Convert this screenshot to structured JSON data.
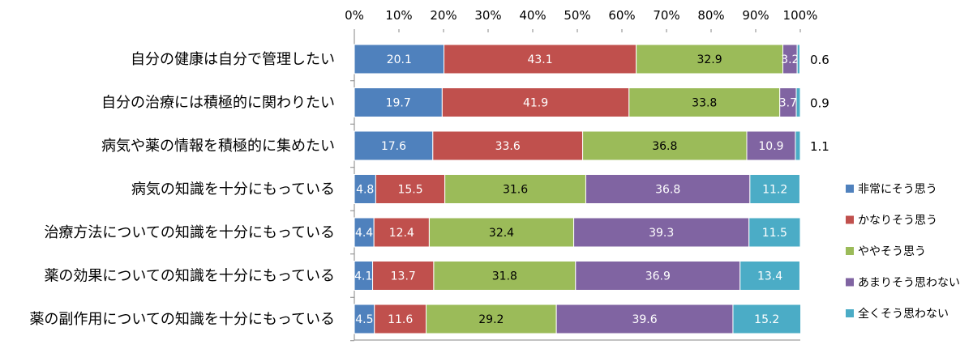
{
  "chart_data": {
    "type": "bar",
    "orientation": "horizontal",
    "stacked": "percent",
    "xlim": [
      0,
      100
    ],
    "x_ticks": [
      "0%",
      "10%",
      "20%",
      "30%",
      "40%",
      "50%",
      "60%",
      "70%",
      "80%",
      "90%",
      "100%"
    ],
    "categories": [
      "自分の健康は自分で管理したい",
      "自分の治療には積極的に関わりたい",
      "病気や薬の情報を積極的に集めたい",
      "病気の知識を十分にもっている",
      "治療方法についての知識を十分にもっている",
      "薬の効果についての知識を十分にもっている",
      "薬の副作用についての知識を十分にもっている"
    ],
    "series": [
      {
        "name": "非常にそう思う",
        "color": "#4f81bd",
        "values": [
          20.1,
          19.7,
          17.6,
          4.8,
          4.4,
          4.1,
          4.5
        ]
      },
      {
        "name": "かなりそう思う",
        "color": "#c0504d",
        "values": [
          43.1,
          41.9,
          33.6,
          15.5,
          12.4,
          13.7,
          11.6
        ]
      },
      {
        "name": "ややそう思う",
        "color": "#9bbb59",
        "values": [
          32.9,
          33.8,
          36.8,
          31.6,
          32.4,
          31.8,
          29.2
        ]
      },
      {
        "name": "あまりそう思わない",
        "color": "#8064a2",
        "values": [
          3.2,
          3.7,
          10.9,
          36.8,
          39.3,
          36.9,
          39.6
        ]
      },
      {
        "name": "全くそう思わない",
        "color": "#4bacc6",
        "values": [
          0.6,
          0.9,
          1.1,
          11.2,
          11.5,
          13.4,
          15.2
        ]
      }
    ],
    "outside_labels": [
      "0.6",
      "0.9",
      "1.1"
    ],
    "legend_position": "right",
    "grid": false
  }
}
